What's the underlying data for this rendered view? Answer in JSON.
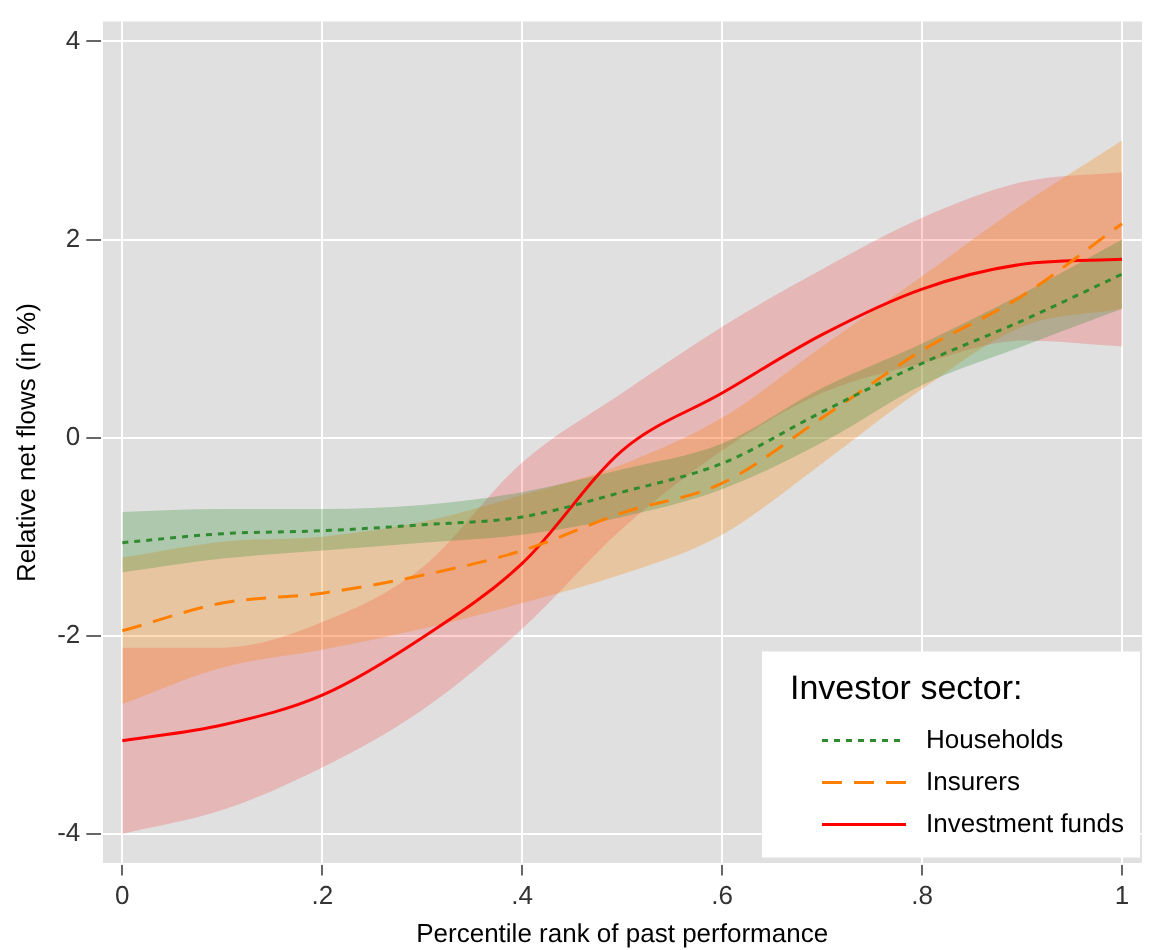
{
  "chart_data": {
    "type": "line",
    "xlabel": "Percentile rank of past performance",
    "ylabel": "Relative net flows (in %)",
    "legend_title": "Investor sector:",
    "x": [
      0,
      0.1,
      0.2,
      0.3,
      0.4,
      0.5,
      0.6,
      0.7,
      0.8,
      0.9,
      1
    ],
    "series": [
      {
        "name": "Households",
        "color": "#2e8b2e",
        "line_style": "dotted",
        "values": [
          -1.06,
          -0.97,
          -0.94,
          -0.88,
          -0.8,
          -0.55,
          -0.26,
          0.26,
          0.75,
          1.18,
          1.65
        ],
        "lower": [
          -1.36,
          -1.22,
          -1.14,
          -1.06,
          -0.98,
          -0.8,
          -0.52,
          -0.05,
          0.53,
          0.92,
          1.3
        ],
        "upper": [
          -0.75,
          -0.72,
          -0.72,
          -0.68,
          -0.55,
          -0.32,
          -0.06,
          0.5,
          0.95,
          1.45,
          2.0
        ]
      },
      {
        "name": "Insurers",
        "color": "#ff8000",
        "line_style": "dashed",
        "values": [
          -1.95,
          -1.67,
          -1.57,
          -1.39,
          -1.14,
          -0.76,
          -0.46,
          0.2,
          0.88,
          1.43,
          2.16
        ],
        "lower": [
          -2.69,
          -2.32,
          -2.14,
          -1.93,
          -1.67,
          -1.38,
          -0.98,
          -0.26,
          0.49,
          1.12,
          1.3
        ],
        "upper": [
          -1.21,
          -1.05,
          -1.0,
          -0.85,
          -0.58,
          -0.27,
          0.2,
          0.92,
          1.63,
          2.35,
          3.0
        ]
      },
      {
        "name": "Investment funds",
        "color": "#ff0000",
        "line_style": "solid",
        "values": [
          -3.06,
          -2.9,
          -2.6,
          -2.02,
          -1.27,
          -0.13,
          0.45,
          1.04,
          1.5,
          1.75,
          1.8
        ],
        "lower": [
          -4.0,
          -3.76,
          -3.33,
          -2.75,
          -1.93,
          -0.92,
          -0.13,
          0.45,
          0.75,
          0.98,
          0.92
        ],
        "upper": [
          -2.12,
          -2.12,
          -1.86,
          -1.31,
          -0.25,
          0.45,
          1.12,
          1.7,
          2.22,
          2.58,
          2.68
        ]
      }
    ],
    "xlim": [
      -0.02,
      1.02
    ],
    "xticks": [
      0,
      {
        "value": 0.2,
        "label": ".2"
      },
      {
        "value": 0.4,
        "label": ".4"
      },
      {
        "value": 0.6,
        "label": ".6"
      },
      {
        "value": 0.8,
        "label": ".8"
      },
      1
    ],
    "ylim": [
      -4.3,
      4.2
    ],
    "yticks": [
      -4,
      -2,
      0,
      2,
      4
    ],
    "grid": true,
    "legend": "bottom right"
  }
}
